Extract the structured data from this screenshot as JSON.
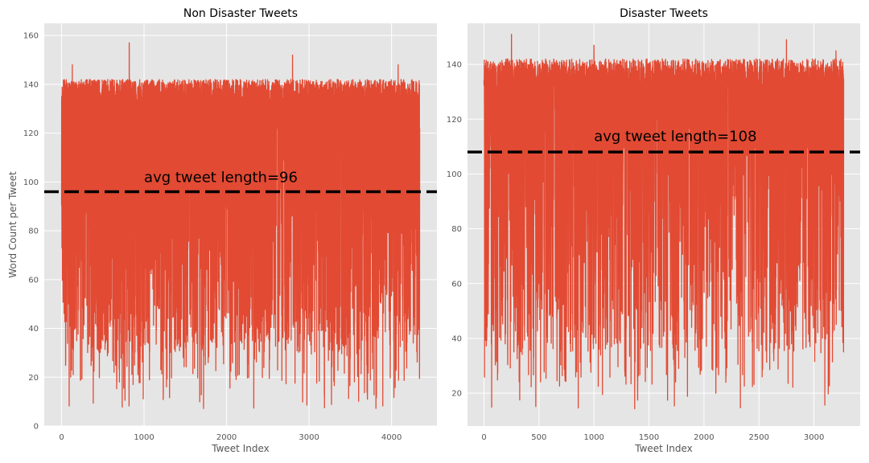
{
  "chart_data": [
    {
      "type": "line",
      "title": "Non Disaster Tweets",
      "xlabel": "Tweet Index",
      "ylabel": "Word Count per Tweet",
      "xlim": [
        -210,
        4550
      ],
      "ylim": [
        0,
        165
      ],
      "xticks": [
        0,
        1000,
        2000,
        3000,
        4000
      ],
      "xtick_labels": [
        "0",
        "1000",
        "2000",
        "3000",
        "4000"
      ],
      "yticks": [
        0,
        20,
        40,
        60,
        80,
        100,
        120,
        140,
        160
      ],
      "ytick_labels": [
        "0",
        "20",
        "40",
        "60",
        "80",
        "100",
        "120",
        "140",
        "160"
      ],
      "grid": true,
      "series": [
        {
          "color": "#E24A33",
          "n_points": 4342,
          "min": 7,
          "max": 157,
          "typical_range": [
            30,
            140
          ],
          "peaks": [
            [
              820,
              157
            ],
            [
              2800,
              152
            ],
            [
              4080,
              148
            ],
            [
              130,
              148
            ]
          ]
        }
      ],
      "reference_line": {
        "y": 96,
        "style": "dashed",
        "color": "#000000"
      },
      "annotation": {
        "text": "avg tweet length=96",
        "x": 1000,
        "y": 100
      }
    },
    {
      "type": "line",
      "title": "Disaster Tweets",
      "xlabel": "Tweet Index",
      "ylabel": "",
      "xlim": [
        -150,
        3420
      ],
      "ylim": [
        8,
        155
      ],
      "xticks": [
        0,
        500,
        1000,
        1500,
        2000,
        2500,
        3000
      ],
      "xtick_labels": [
        "0",
        "500",
        "1000",
        "1500",
        "2000",
        "2500",
        "3000"
      ],
      "yticks": [
        20,
        40,
        60,
        80,
        100,
        120,
        140
      ],
      "ytick_labels": [
        "20",
        "40",
        "60",
        "80",
        "100",
        "120",
        "140"
      ],
      "grid": true,
      "series": [
        {
          "color": "#E24A33",
          "n_points": 3271,
          "min": 14,
          "max": 151,
          "typical_range": [
            35,
            140
          ],
          "peaks": [
            [
              250,
              151
            ],
            [
              2750,
              149
            ],
            [
              1000,
              147
            ],
            [
              3200,
              145
            ]
          ]
        }
      ],
      "reference_line": {
        "y": 108,
        "style": "dashed",
        "color": "#000000"
      },
      "annotation": {
        "text": "avg tweet length=108",
        "x": 1000,
        "y": 112
      }
    }
  ]
}
